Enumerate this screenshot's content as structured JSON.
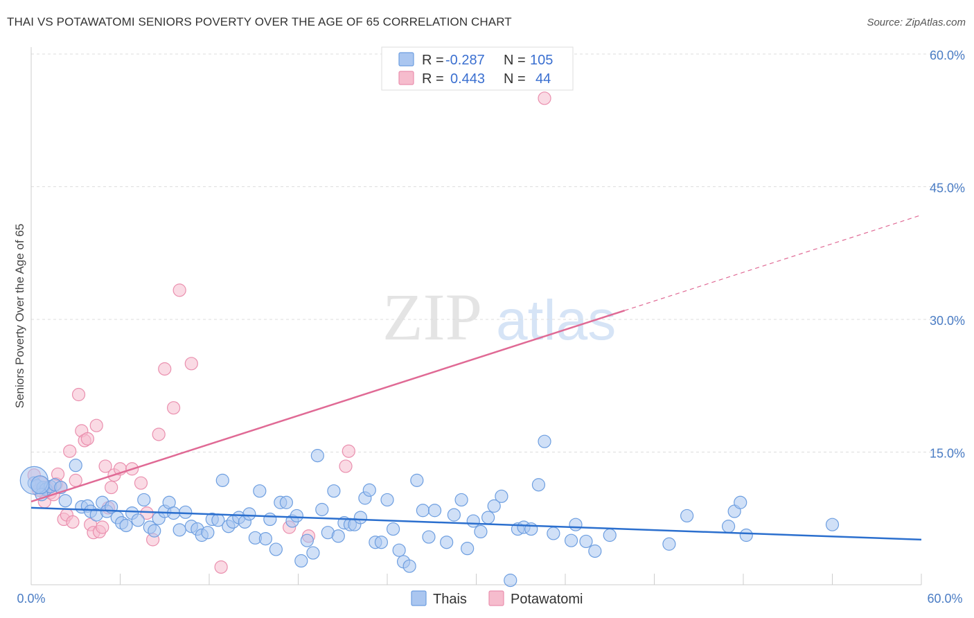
{
  "title": "THAI VS POTAWATOMI SENIORS POVERTY OVER THE AGE OF 65 CORRELATION CHART",
  "source": "Source: ZipAtlas.com",
  "watermark": {
    "zip": "ZIP",
    "atlas": "atlas"
  },
  "colors": {
    "thai_fill": "#aac6f0",
    "thai_stroke": "#6d9ee0",
    "thai_line": "#2b6fce",
    "pota_fill": "#f6bccd",
    "pota_stroke": "#ea8fae",
    "pota_line": "#e06a95",
    "grid": "#dddddd",
    "tick_text": "#4a7cc4"
  },
  "chart_data": {
    "type": "scatter",
    "title": "THAI VS POTAWATOMI SENIORS POVERTY OVER THE AGE OF 65 CORRELATION CHART",
    "ylabel": "Seniors Poverty Over the Age of 65",
    "xlim": [
      0,
      60
    ],
    "ylim": [
      0,
      60
    ],
    "x_tick_labels": [
      "0.0%",
      "60.0%"
    ],
    "y_ticks": [
      15,
      30,
      45,
      60
    ],
    "y_tick_labels": [
      "15.0%",
      "30.0%",
      "45.0%",
      "60.0%"
    ],
    "legend": [
      {
        "series": "Thais",
        "r_label": "R =",
        "r": "-0.287",
        "n_label": "N =",
        "n": "105"
      },
      {
        "series": "Potawatomi",
        "r_label": "R =",
        "r": "0.443",
        "n_label": "N =",
        "n": "44"
      }
    ],
    "series": [
      {
        "name": "Thais",
        "trend": {
          "x0": 0,
          "y0": 8.7,
          "x1": 60,
          "y1": 5.1
        },
        "points": [
          [
            0.2,
            11.5
          ],
          [
            0.4,
            11.2
          ],
          [
            0.8,
            11.0
          ],
          [
            1.0,
            10.8
          ],
          [
            1.3,
            11.1
          ],
          [
            1.6,
            11.3
          ],
          [
            2.0,
            11.0
          ],
          [
            2.3,
            9.5
          ],
          [
            3.0,
            13.5
          ],
          [
            3.4,
            8.8
          ],
          [
            3.8,
            8.9
          ],
          [
            4.0,
            8.3
          ],
          [
            4.4,
            7.9
          ],
          [
            4.8,
            9.3
          ],
          [
            5.1,
            8.3
          ],
          [
            5.4,
            8.8
          ],
          [
            5.8,
            7.6
          ],
          [
            6.1,
            7.0
          ],
          [
            6.4,
            6.7
          ],
          [
            6.8,
            8.1
          ],
          [
            7.2,
            7.3
          ],
          [
            7.6,
            9.6
          ],
          [
            8.0,
            6.5
          ],
          [
            8.3,
            6.1
          ],
          [
            8.6,
            7.5
          ],
          [
            9.0,
            8.3
          ],
          [
            9.3,
            9.3
          ],
          [
            9.6,
            8.1
          ],
          [
            10.0,
            6.2
          ],
          [
            10.4,
            8.2
          ],
          [
            10.8,
            6.6
          ],
          [
            11.2,
            6.3
          ],
          [
            11.5,
            5.6
          ],
          [
            11.9,
            5.9
          ],
          [
            12.2,
            7.4
          ],
          [
            12.6,
            7.3
          ],
          [
            12.9,
            11.8
          ],
          [
            13.3,
            6.6
          ],
          [
            13.6,
            7.1
          ],
          [
            14.0,
            7.6
          ],
          [
            14.4,
            7.1
          ],
          [
            14.7,
            8.0
          ],
          [
            15.1,
            5.3
          ],
          [
            15.4,
            10.6
          ],
          [
            15.8,
            5.2
          ],
          [
            16.1,
            7.4
          ],
          [
            16.5,
            4.0
          ],
          [
            16.8,
            9.3
          ],
          [
            17.2,
            9.3
          ],
          [
            17.6,
            7.2
          ],
          [
            17.9,
            7.8
          ],
          [
            18.2,
            2.7
          ],
          [
            18.6,
            5.0
          ],
          [
            19.0,
            3.6
          ],
          [
            19.3,
            14.6
          ],
          [
            19.6,
            8.5
          ],
          [
            20.0,
            5.9
          ],
          [
            20.4,
            10.6
          ],
          [
            20.7,
            5.5
          ],
          [
            21.1,
            7.0
          ],
          [
            21.5,
            6.8
          ],
          [
            21.8,
            6.8
          ],
          [
            22.2,
            7.6
          ],
          [
            22.5,
            9.8
          ],
          [
            22.8,
            10.7
          ],
          [
            23.2,
            4.8
          ],
          [
            23.6,
            4.8
          ],
          [
            24.0,
            9.6
          ],
          [
            24.4,
            6.3
          ],
          [
            24.8,
            3.9
          ],
          [
            25.1,
            2.6
          ],
          [
            25.5,
            2.1
          ],
          [
            26.0,
            11.8
          ],
          [
            26.4,
            8.4
          ],
          [
            26.8,
            5.4
          ],
          [
            27.2,
            8.4
          ],
          [
            28.0,
            4.8
          ],
          [
            28.5,
            7.9
          ],
          [
            29.0,
            9.6
          ],
          [
            29.4,
            4.1
          ],
          [
            29.8,
            7.2
          ],
          [
            30.3,
            6.0
          ],
          [
            30.8,
            7.6
          ],
          [
            31.2,
            8.9
          ],
          [
            31.7,
            10.0
          ],
          [
            32.3,
            0.5
          ],
          [
            32.8,
            6.3
          ],
          [
            33.2,
            6.5
          ],
          [
            33.7,
            6.3
          ],
          [
            34.2,
            11.3
          ],
          [
            34.6,
            16.2
          ],
          [
            35.2,
            5.8
          ],
          [
            36.4,
            5.0
          ],
          [
            36.7,
            6.8
          ],
          [
            37.4,
            4.9
          ],
          [
            38.0,
            3.8
          ],
          [
            39.0,
            5.6
          ],
          [
            43.0,
            4.6
          ],
          [
            44.2,
            7.8
          ],
          [
            47.0,
            6.6
          ],
          [
            47.4,
            8.3
          ],
          [
            47.8,
            9.3
          ],
          [
            48.2,
            5.6
          ],
          [
            54.0,
            6.8
          ],
          [
            0.7,
            10.2
          ]
        ],
        "big_points": [
          [
            0.2,
            11.8
          ],
          [
            0.6,
            11.3
          ]
        ]
      },
      {
        "name": "Potawatomi",
        "trend": {
          "x0": 0,
          "y0": 9.4,
          "x1": 40,
          "y1": 31.0,
          "dash_x1": 60,
          "dash_y1": 41.8
        },
        "points": [
          [
            0.2,
            12.4
          ],
          [
            0.5,
            10.7
          ],
          [
            0.7,
            11.5
          ],
          [
            0.9,
            9.4
          ],
          [
            1.1,
            11.0
          ],
          [
            1.3,
            10.4
          ],
          [
            1.5,
            10.2
          ],
          [
            1.7,
            11.4
          ],
          [
            1.8,
            12.5
          ],
          [
            2.0,
            11.0
          ],
          [
            2.2,
            7.4
          ],
          [
            2.4,
            7.9
          ],
          [
            2.6,
            15.1
          ],
          [
            2.8,
            7.1
          ],
          [
            3.0,
            11.8
          ],
          [
            3.2,
            21.5
          ],
          [
            3.4,
            17.4
          ],
          [
            3.6,
            16.3
          ],
          [
            3.8,
            16.5
          ],
          [
            4.0,
            6.8
          ],
          [
            4.2,
            5.9
          ],
          [
            4.4,
            18.0
          ],
          [
            4.6,
            6.0
          ],
          [
            4.8,
            6.5
          ],
          [
            5.0,
            13.4
          ],
          [
            5.2,
            8.7
          ],
          [
            5.4,
            11.0
          ],
          [
            5.6,
            12.4
          ],
          [
            6.0,
            13.1
          ],
          [
            6.8,
            13.1
          ],
          [
            7.4,
            11.5
          ],
          [
            7.8,
            8.1
          ],
          [
            8.2,
            5.1
          ],
          [
            8.6,
            17.0
          ],
          [
            9.0,
            24.4
          ],
          [
            9.6,
            20.0
          ],
          [
            10.0,
            33.3
          ],
          [
            10.8,
            25.0
          ],
          [
            12.8,
            2.0
          ],
          [
            17.4,
            6.5
          ],
          [
            18.7,
            5.5
          ],
          [
            21.2,
            13.4
          ],
          [
            21.4,
            15.1
          ],
          [
            34.6,
            55.0
          ]
        ]
      }
    ]
  },
  "bottom_legend": {
    "thai": "Thais",
    "pota": "Potawatomi"
  }
}
